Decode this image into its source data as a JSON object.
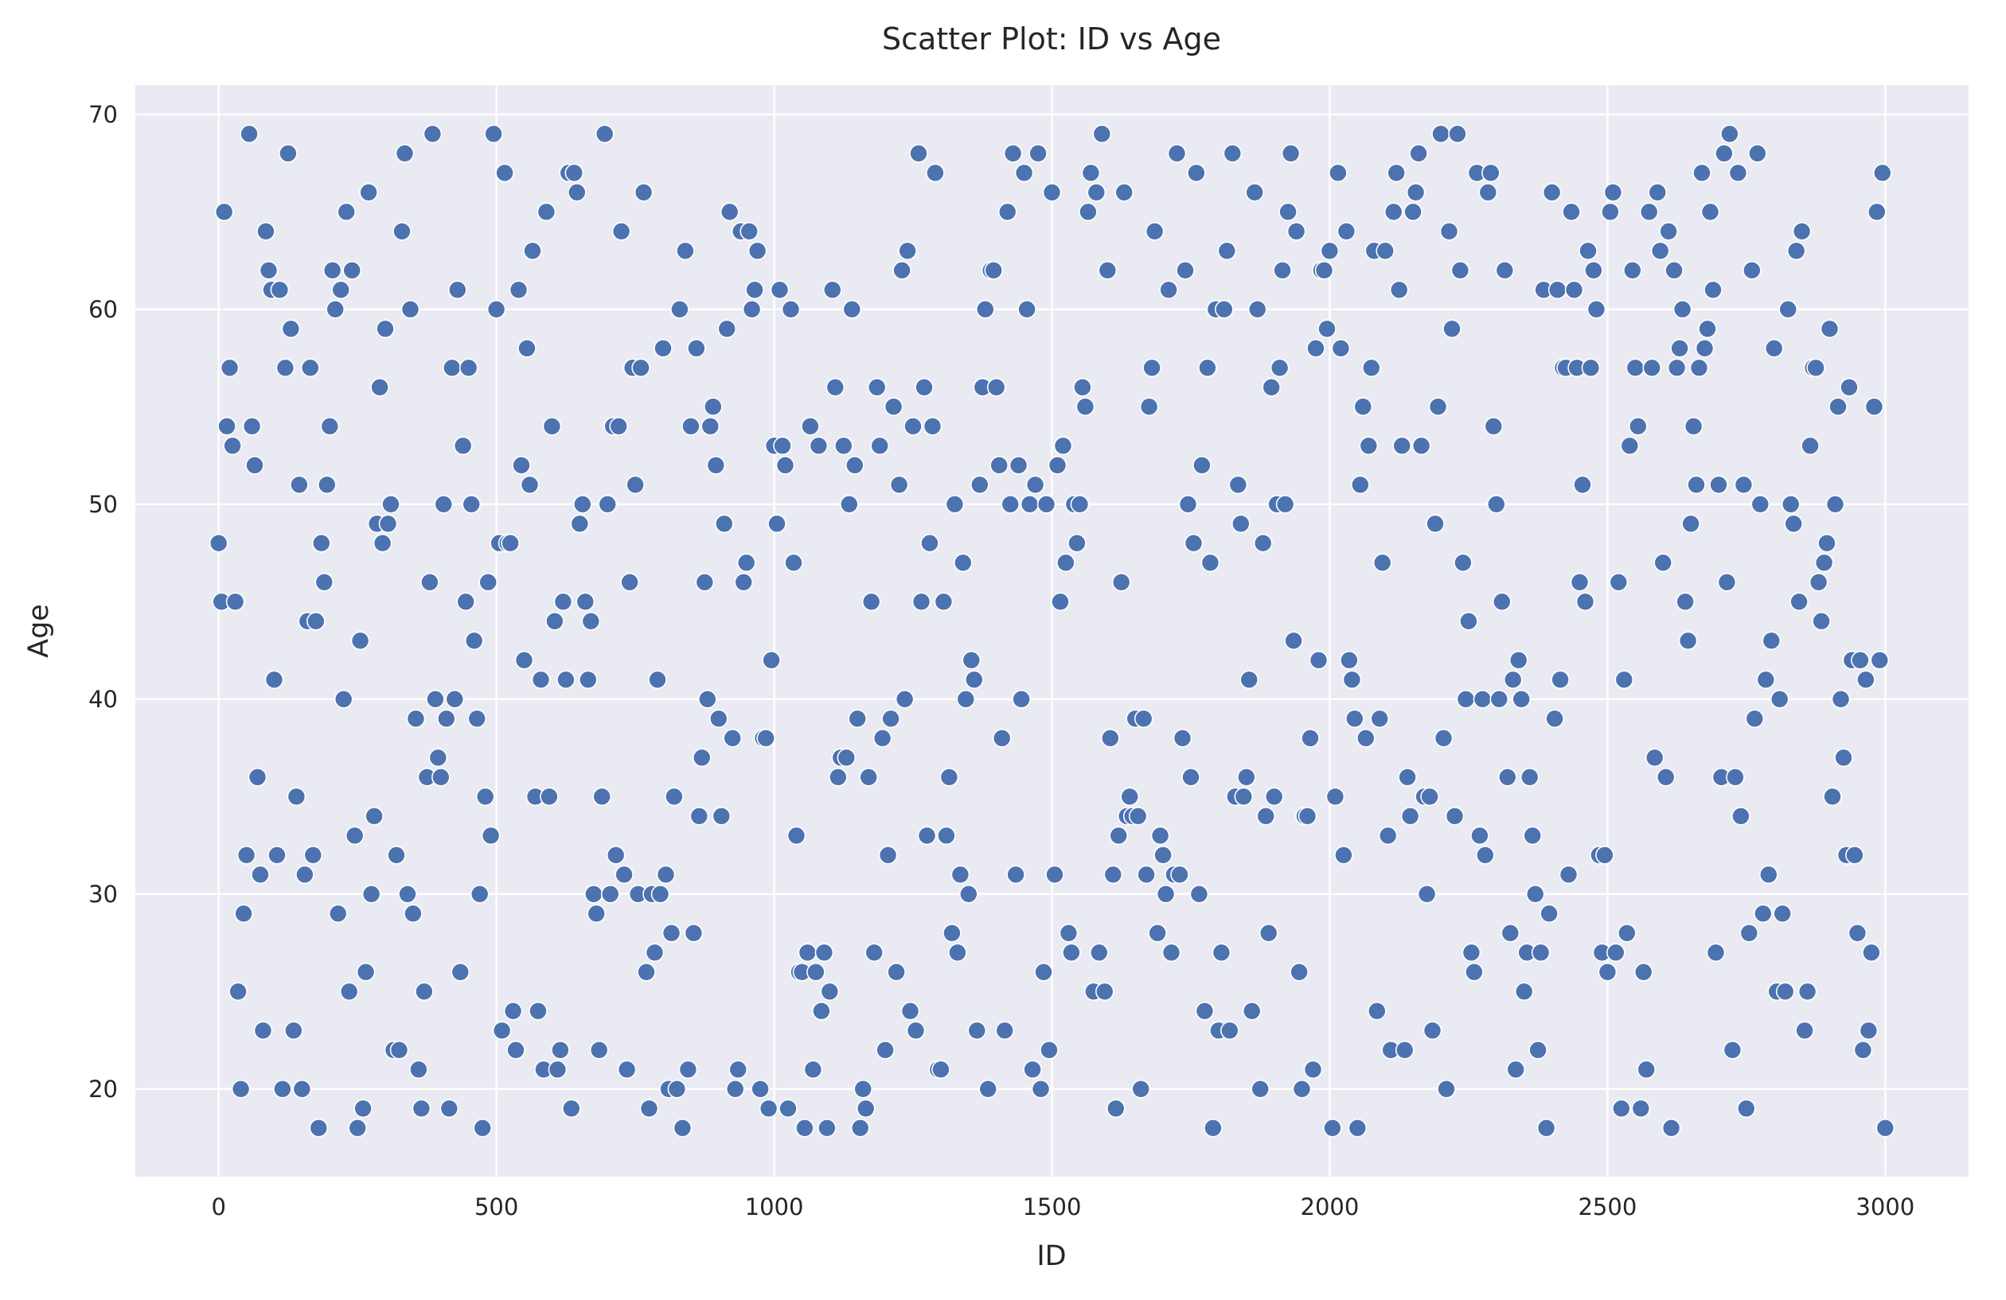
{
  "chart_data": {
    "type": "scatter",
    "title": "Scatter Plot: ID vs Age",
    "xlabel": "ID",
    "ylabel": "Age",
    "xlim": [
      -150,
      3150
    ],
    "ylim": [
      15.5,
      71.5
    ],
    "x_ticks": [
      0,
      500,
      1000,
      1500,
      2000,
      2500,
      3000
    ],
    "y_ticks": [
      20,
      30,
      40,
      50,
      60,
      70
    ],
    "x_tick_labels": [
      "0",
      "500",
      "1000",
      "1500",
      "2000",
      "2500",
      "3000"
    ],
    "y_tick_labels": [
      "20",
      "30",
      "40",
      "50",
      "60",
      "70"
    ],
    "grid": true,
    "background_color": "#eaeaf2",
    "grid_color": "#ffffff",
    "point_color": "#4c72b0",
    "series": [
      {
        "points_note_sampled": true,
        "id_range": [
          0,
          3000
        ],
        "age_range": [
          18,
          69
        ],
        "id_step": 5,
        "seed": 42
      }
    ]
  }
}
